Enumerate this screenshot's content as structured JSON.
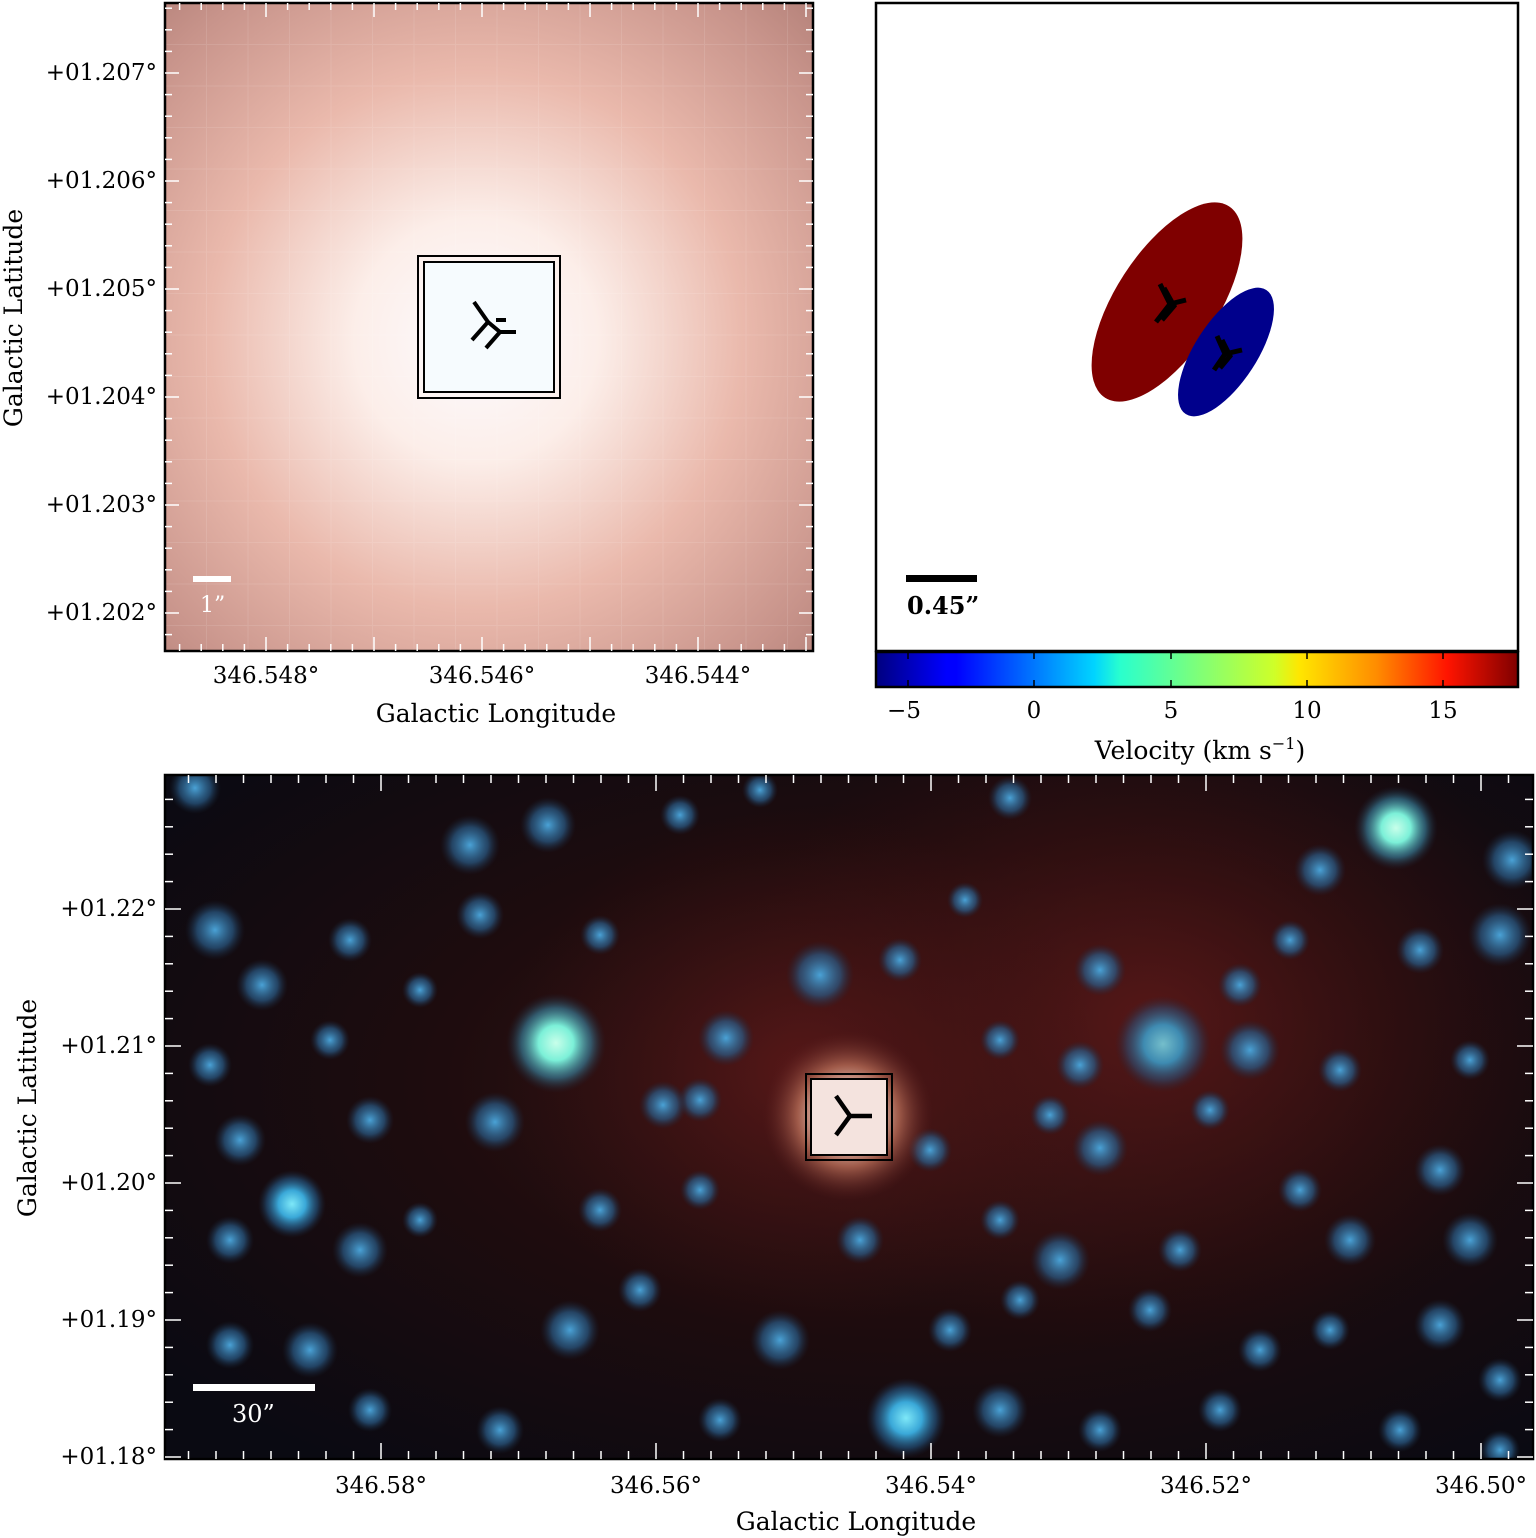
{
  "panel_a": {
    "ylabel": "Galactic Latitude",
    "xlabel": "Galactic Longitude",
    "yticks": [
      "+01.207°",
      "+01.206°",
      "+01.205°",
      "+01.204°",
      "+01.203°",
      "+01.202°"
    ],
    "xticks": [
      "346.548°",
      "346.546°",
      "346.544°"
    ],
    "scalebar_label": "1”"
  },
  "panel_b": {
    "scalebar_label": "0.45”",
    "colorbar_label": "Velocity (km s",
    "colorbar_sup": "−1",
    "colorbar_close": ")",
    "colorbar_ticks": [
      "−5",
      "0",
      "5",
      "10",
      "15"
    ],
    "redshifted_color": "#7f0000",
    "blueshifted_color": "#00008c"
  },
  "panel_c": {
    "ylabel": "Galactic Latitude",
    "xlabel": "Galactic Longitude",
    "yticks": [
      "+01.22°",
      "+01.21°",
      "+01.20°",
      "+01.19°",
      "+01.18°"
    ],
    "xticks": [
      "346.58°",
      "346.56°",
      "346.54°",
      "346.52°",
      "346.50°"
    ],
    "scalebar_label": "30”"
  }
}
